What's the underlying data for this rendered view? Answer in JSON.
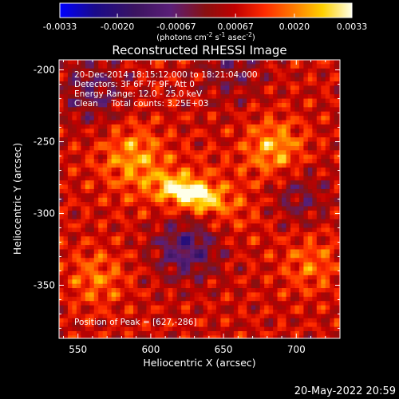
{
  "chart_data": {
    "type": "heatmap",
    "title": "Reconstructed RHESSI Image",
    "xlabel": "Heliocentric X (arcsec)",
    "ylabel": "Heliocentric Y (arcsec)",
    "xlim": [
      537,
      730
    ],
    "ylim": [
      -387,
      -193
    ],
    "xticks": [
      "550",
      "600",
      "650",
      "700"
    ],
    "yticks": [
      "-350",
      "-300",
      "-250",
      "-200"
    ],
    "xtick_values": [
      550,
      600,
      650,
      700
    ],
    "ytick_values": [
      -350,
      -300,
      -250,
      -200
    ],
    "colorbar": {
      "min": -0.0033,
      "max": 0.0033,
      "ticks": [
        "-0.0033",
        "-0.0020",
        "-0.00067",
        "0.00067",
        "0.0020",
        "0.0033"
      ],
      "tick_values": [
        -0.0033,
        -0.002,
        -0.00067,
        0.00067,
        0.002,
        0.0033
      ],
      "unit_text": "(photons cm",
      "unit_exp1": "-2",
      "unit_mid1": " s",
      "unit_exp2": "-1",
      "unit_mid2": " asec",
      "unit_exp3": "-2",
      "unit_end": ")",
      "colormap": [
        "#0000ff",
        "#1a0a8a",
        "#3c1460",
        "#5a1f78",
        "#8a1010",
        "#c00000",
        "#ff2a00",
        "#ff7a00",
        "#ffd000",
        "#ffffe8"
      ]
    },
    "annotations": [
      "20-Dec-2014 18:15:12.000 to 18:21:04.000",
      "Detectors: 3F 6F 7F 9F, Att 0",
      "Energy Range: 12.0 - 25.0 keV",
      "Clean     Total counts: 3.25E+03"
    ],
    "peak_label": "Position of Peak = [627,-286]",
    "peak": {
      "x": 627,
      "y": -286,
      "value": 0.0033
    },
    "secondary_sources": [
      {
        "x": 685,
        "y": -255,
        "value": 0.0018
      },
      {
        "x": 588,
        "y": -258,
        "value": 0.0013
      },
      {
        "x": 563,
        "y": -345,
        "value": 0.0012
      },
      {
        "x": 710,
        "y": -335,
        "value": 0.0011
      }
    ],
    "negative_regions": [
      {
        "x": 625,
        "y": -323,
        "value": -0.0012
      },
      {
        "x": 560,
        "y": -215,
        "value": -0.0008
      },
      {
        "x": 700,
        "y": -290,
        "value": -0.0007
      },
      {
        "x": 655,
        "y": -200,
        "value": -0.0006
      }
    ]
  },
  "footer": {
    "date": "20-May-2022 20:59"
  }
}
